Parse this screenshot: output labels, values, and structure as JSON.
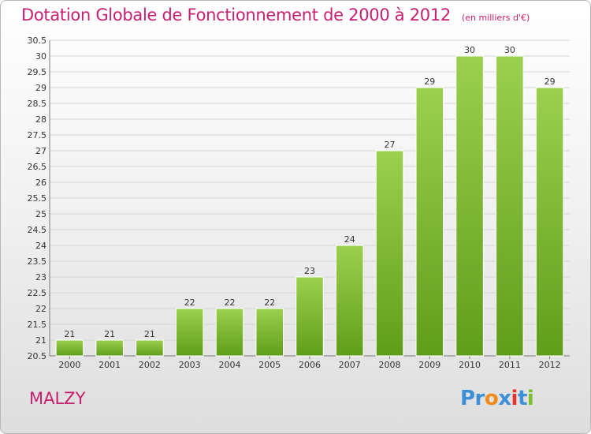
{
  "title": "Dotation Globale de Fonctionnement de 2000 à 2012",
  "subtitle": "(en milliers d'€)",
  "commune": "MALZY",
  "logo": {
    "letters": [
      "Pr",
      "o",
      "x",
      "i",
      "t",
      "i"
    ]
  },
  "colors": {
    "bar_top": "#9bd04f",
    "bar_bottom": "#5f9e1a",
    "title": "#c82070"
  },
  "chart_data": {
    "type": "bar",
    "title": "Dotation Globale de Fonctionnement de 2000 à 2012",
    "subtitle": "(en milliers d'€)",
    "xlabel": "",
    "ylabel": "",
    "categories": [
      "2000",
      "2001",
      "2002",
      "2003",
      "2004",
      "2005",
      "2006",
      "2007",
      "2008",
      "2009",
      "2010",
      "2011",
      "2012"
    ],
    "values": [
      21,
      21,
      21,
      22,
      22,
      22,
      23,
      24,
      27,
      29,
      30,
      30,
      29
    ],
    "ylim": [
      20.5,
      30.5
    ],
    "yticks": [
      "20.5",
      "21",
      "21.5",
      "22",
      "22.5",
      "23",
      "23.5",
      "24",
      "24.5",
      "25",
      "25.5",
      "26",
      "26.5",
      "27",
      "27.5",
      "28",
      "28.5",
      "29",
      "29.5",
      "30",
      "30.5"
    ],
    "grid": true,
    "legend": "none"
  }
}
